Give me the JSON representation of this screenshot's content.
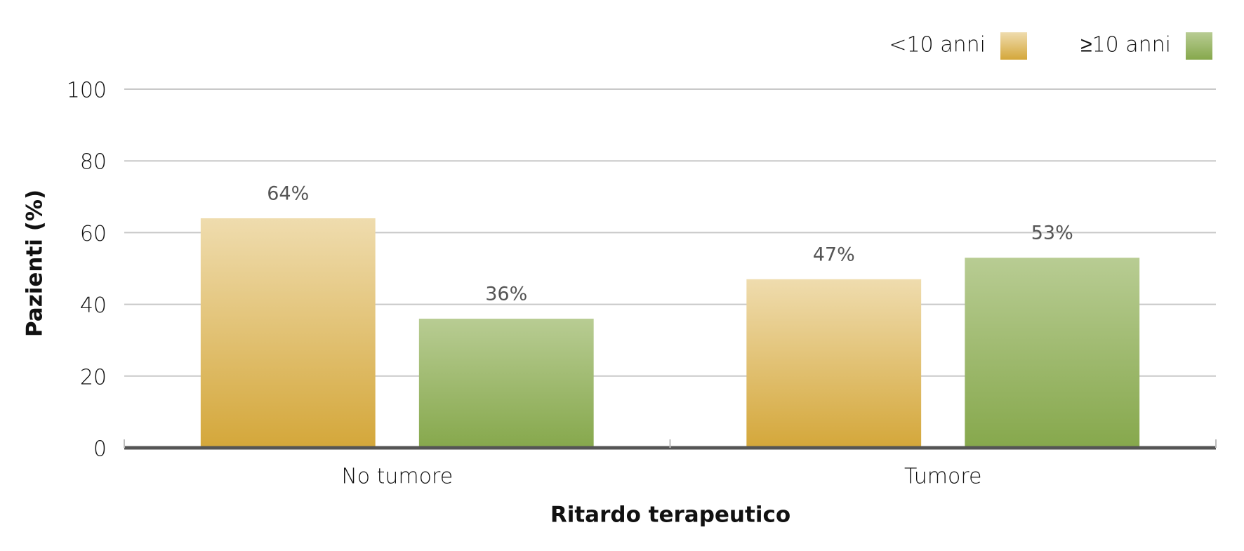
{
  "chart_data": {
    "type": "bar",
    "x_label": "Ritardo terapeutico",
    "y_label": "Pazienti (%)",
    "categories": [
      "No tumore",
      "Tumore"
    ],
    "series": [
      {
        "name": "<10 anni",
        "color": "#d4a73a",
        "light": "#efdcae",
        "values": [
          64,
          47
        ],
        "value_labels": [
          "64%",
          "47%"
        ]
      },
      {
        "name": "≥10 anni",
        "color": "#86a84c",
        "light": "#b8cc93",
        "values": [
          36,
          53
        ],
        "value_labels": [
          "36%",
          "53%"
        ]
      }
    ],
    "ylim": [
      0,
      100
    ],
    "yticks": [
      0,
      20,
      40,
      60,
      80,
      100
    ],
    "grid": true,
    "legend": "top-right"
  }
}
